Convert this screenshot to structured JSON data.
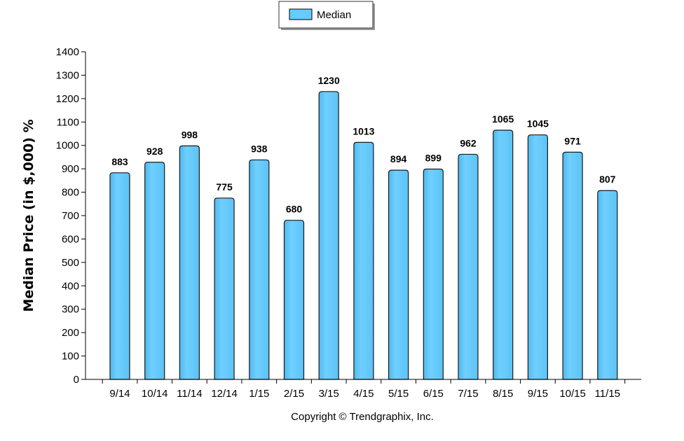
{
  "chart_data": {
    "type": "bar",
    "categories": [
      "9/14",
      "10/14",
      "11/14",
      "12/14",
      "1/15",
      "2/15",
      "3/15",
      "4/15",
      "5/15",
      "6/15",
      "7/15",
      "8/15",
      "9/15",
      "10/15",
      "11/15"
    ],
    "series": [
      {
        "name": "Median",
        "values": [
          883,
          928,
          998,
          775,
          938,
          680,
          1230,
          1013,
          894,
          899,
          962,
          1065,
          1045,
          971,
          807
        ]
      }
    ],
    "ylabel": "Median Price (in $,000) %",
    "ylim": [
      0,
      1400
    ],
    "ytick_step": 100,
    "legend_position": "top-center",
    "grid": false,
    "bar_color": "#66ccff"
  },
  "footer": {
    "copyright": "Copyright © Trendgraphix, Inc."
  }
}
